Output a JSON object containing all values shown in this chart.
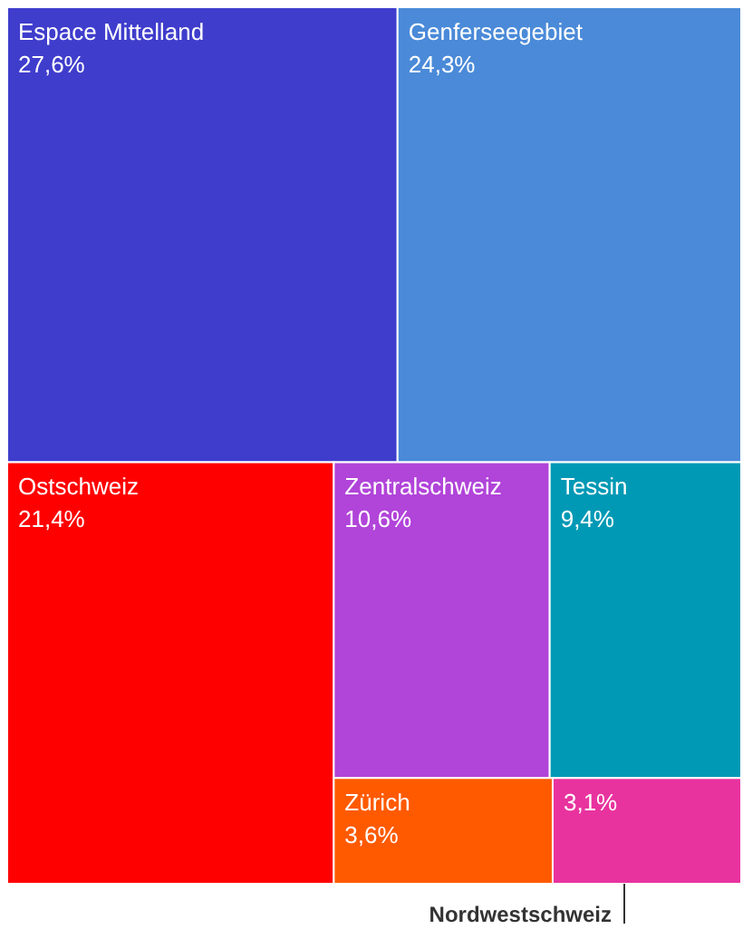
{
  "chart_data": {
    "type": "other",
    "categories": [
      "Espace Mittelland",
      "Genferseegebiet",
      "Ostschweiz",
      "Zentralschweiz",
      "Tessin",
      "Zürich",
      "Nordwestschweiz"
    ],
    "values": [
      27.6,
      24.3,
      21.4,
      10.6,
      9.4,
      3.6,
      3.1
    ],
    "value_labels": [
      "27,6%",
      "24,3%",
      "21,4%",
      "10,6%",
      "9,4%",
      "3,6%",
      "3,1%"
    ],
    "colors": [
      "#3f3dcc",
      "#4a8ad8",
      "#ff0000",
      "#b144d9",
      "#0099b5",
      "#ff5a00",
      "#e8339e"
    ]
  }
}
